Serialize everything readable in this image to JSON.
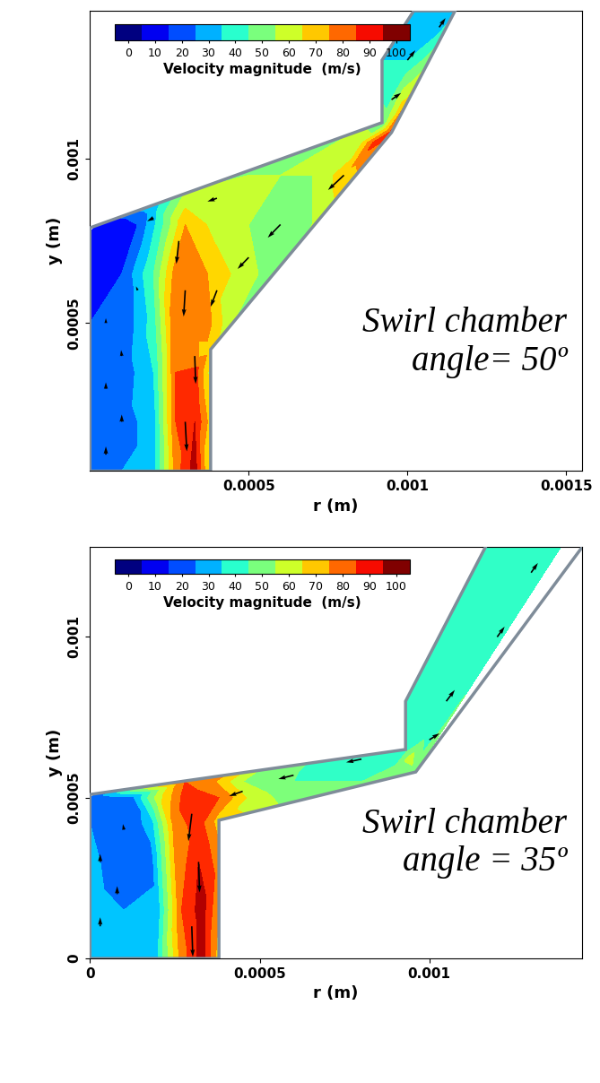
{
  "chart_data": [
    {
      "type": "contour",
      "annotation": "Swirl chamber\nangle= 50º",
      "xlabel": "r (m)",
      "ylabel": "y (m)",
      "xlim": [
        0,
        0.00155
      ],
      "ylim": [
        5e-05,
        0.00145
      ],
      "xticks": [
        0.0005,
        0.001,
        0.0015
      ],
      "yticks": [
        0.0005,
        0.001
      ],
      "colorbar": {
        "label": "Velocity magnitude  (m/s)",
        "range": [
          -5,
          105
        ],
        "ticks": [
          0,
          10,
          20,
          30,
          40,
          50,
          60,
          70,
          80,
          90,
          100
        ],
        "levels": [
          -5,
          5,
          15,
          25,
          35,
          45,
          55,
          65,
          75,
          85,
          95,
          105
        ]
      },
      "wall": [
        [
          0,
          5e-05
        ],
        [
          0.00038,
          5e-05
        ],
        [
          0.00038,
          0.00042
        ],
        [
          0.00095,
          0.00108
        ],
        [
          0.00115,
          0.00145
        ],
        [
          0.00102,
          0.00145
        ],
        [
          0.00092,
          0.0013
        ],
        [
          0.00092,
          0.00111
        ],
        [
          0,
          0.00079
        ]
      ],
      "field": [
        [
          0,
          5e-05,
          25
        ],
        [
          0.0001,
          5e-05,
          25
        ],
        [
          0.0002,
          5e-05,
          30
        ],
        [
          0.00027,
          5e-05,
          80
        ],
        [
          0.00033,
          5e-05,
          100
        ],
        [
          0.00038,
          5e-05,
          60
        ],
        [
          0,
          0.0002,
          25
        ],
        [
          0.0001,
          0.0002,
          20
        ],
        [
          0.0002,
          0.0002,
          30
        ],
        [
          0.00027,
          0.0002,
          85
        ],
        [
          0.00033,
          0.0002,
          95
        ],
        [
          0.00038,
          0.0002,
          70
        ],
        [
          0,
          0.00035,
          22
        ],
        [
          0.0001,
          0.00035,
          18
        ],
        [
          0.0002,
          0.00035,
          35
        ],
        [
          0.00027,
          0.00035,
          85
        ],
        [
          0.00033,
          0.00035,
          90
        ],
        [
          0.00038,
          0.00035,
          60
        ],
        [
          0.00038,
          0.00042,
          70
        ],
        [
          0,
          0.0005,
          15
        ],
        [
          0.0001,
          0.0005,
          15
        ],
        [
          0.0002,
          0.0005,
          40
        ],
        [
          0.00027,
          0.0005,
          85
        ],
        [
          0.00035,
          0.0005,
          85
        ],
        [
          0.00045,
          0.0005,
          55
        ],
        [
          0,
          0.00065,
          12
        ],
        [
          0.0001,
          0.00065,
          15
        ],
        [
          0.0002,
          0.00065,
          45
        ],
        [
          0.00027,
          0.00065,
          80
        ],
        [
          0.00037,
          0.00065,
          75
        ],
        [
          0.00048,
          0.00065,
          60
        ],
        [
          0.00058,
          0.00065,
          50
        ],
        [
          0,
          0.00078,
          5
        ],
        [
          5e-05,
          0.0008,
          5
        ],
        [
          0.00015,
          0.0008,
          15
        ],
        [
          0.00022,
          0.0008,
          40
        ],
        [
          0.0003,
          0.0008,
          75
        ],
        [
          0.0004,
          0.0008,
          60
        ],
        [
          0.0005,
          0.0008,
          55
        ],
        [
          0.0006,
          0.0008,
          50
        ],
        [
          0.0007,
          0.0008,
          55
        ],
        [
          0.0002,
          0.00085,
          30
        ],
        [
          0.0003,
          0.0009,
          55
        ],
        [
          0.0005,
          0.00095,
          55
        ],
        [
          0.0006,
          0.00095,
          55
        ],
        [
          0.0007,
          0.00095,
          55
        ],
        [
          0.0008,
          0.00095,
          70
        ],
        [
          0.00085,
          0.00105,
          60
        ],
        [
          0.0009,
          0.00105,
          90
        ],
        [
          0.00092,
          0.0011,
          50
        ],
        [
          0.00095,
          0.00108,
          90
        ],
        [
          0.00098,
          0.00115,
          70
        ],
        [
          0.00095,
          0.0012,
          40
        ],
        [
          0.00092,
          0.0013,
          35
        ],
        [
          0.001,
          0.0013,
          35
        ],
        [
          0.00105,
          0.0014,
          35
        ],
        [
          0.0011,
          0.0014,
          30
        ],
        [
          0.00102,
          0.00145,
          30
        ],
        [
          0.00115,
          0.00145,
          30
        ]
      ],
      "vectors": [
        [
          5e-05,
          0.0001,
          0,
          25
        ],
        [
          5e-05,
          0.0003,
          0,
          20
        ],
        [
          5e-05,
          0.0005,
          0,
          15
        ],
        [
          0.0001,
          0.0002,
          0,
          22
        ],
        [
          0.0001,
          0.0004,
          -2,
          18
        ],
        [
          0.00015,
          0.0006,
          -5,
          12
        ],
        [
          0.0003,
          0.0002,
          5,
          -90
        ],
        [
          0.00033,
          0.0004,
          3,
          -85
        ],
        [
          0.0003,
          0.0006,
          -5,
          -80
        ],
        [
          0.00028,
          0.00075,
          -8,
          -70
        ],
        [
          0.0008,
          0.00095,
          -50,
          -45
        ],
        [
          0.0006,
          0.0008,
          -40,
          -40
        ],
        [
          0.0005,
          0.0007,
          -35,
          -35
        ],
        [
          0.0004,
          0.0006,
          -20,
          -50
        ],
        [
          0.0004,
          0.00088,
          -30,
          -10
        ],
        [
          0.0002,
          0.00082,
          -20,
          -10
        ],
        [
          0.001,
          0.0013,
          25,
          30
        ],
        [
          0.0011,
          0.0014,
          20,
          28
        ],
        [
          0.00095,
          0.00118,
          30,
          20
        ]
      ]
    },
    {
      "type": "contour",
      "annotation": "Swirl chamber\nangle = 35º",
      "xlabel": "r (m)",
      "ylabel": "y (m)",
      "xlim": [
        0,
        0.00145
      ],
      "ylim": [
        0,
        0.00128
      ],
      "xticks": [
        0,
        0.0005,
        0.001
      ],
      "yticks": [
        0,
        0.0005,
        0.001
      ],
      "colorbar": {
        "label": "Velocity magnitude  (m/s)",
        "range": [
          -5,
          105
        ],
        "ticks": [
          0,
          10,
          20,
          30,
          40,
          50,
          60,
          70,
          80,
          90,
          100
        ],
        "levels": [
          -5,
          5,
          15,
          25,
          35,
          45,
          55,
          65,
          75,
          85,
          95,
          105
        ]
      },
      "wall": [
        [
          0,
          0
        ],
        [
          0.00038,
          0
        ],
        [
          0.00038,
          0.00043
        ],
        [
          0.00096,
          0.00058
        ],
        [
          0.0015,
          0.00135
        ],
        [
          0.0012,
          0.00135
        ],
        [
          0.00093,
          0.0008
        ],
        [
          0.00093,
          0.00065
        ],
        [
          0,
          0.00051
        ]
      ],
      "field": [
        [
          0,
          0,
          30
        ],
        [
          0.0001,
          0,
          30
        ],
        [
          0.0002,
          0,
          35
        ],
        [
          0.00027,
          0,
          80
        ],
        [
          0.00033,
          0,
          100
        ],
        [
          0.00038,
          0,
          70
        ],
        [
          0,
          0.00015,
          30
        ],
        [
          0.0001,
          0.00015,
          25
        ],
        [
          0.0002,
          0.00015,
          30
        ],
        [
          0.00027,
          0.00015,
          85
        ],
        [
          0.00033,
          0.00015,
          100
        ],
        [
          0.00038,
          0.00015,
          75
        ],
        [
          0,
          0.0003,
          28
        ],
        [
          0.0001,
          0.0003,
          18
        ],
        [
          0.00018,
          0.0003,
          20
        ],
        [
          0.00025,
          0.0003,
          75
        ],
        [
          0.00032,
          0.0003,
          95
        ],
        [
          0.00038,
          0.0003,
          80
        ],
        [
          0,
          0.00042,
          25
        ],
        [
          0.0001,
          0.00042,
          15
        ],
        [
          0.00018,
          0.00042,
          30
        ],
        [
          0.00025,
          0.00042,
          80
        ],
        [
          0.00032,
          0.00042,
          90
        ],
        [
          0.00038,
          0.00043,
          70
        ],
        [
          0,
          0.0005,
          15
        ],
        [
          5e-05,
          0.0005,
          20
        ],
        [
          0.00012,
          0.0005,
          20
        ],
        [
          0.0002,
          0.0005,
          60
        ],
        [
          0.00028,
          0.0005,
          90
        ],
        [
          0.00038,
          0.0005,
          85
        ],
        [
          0.00048,
          0.0005,
          60
        ],
        [
          0.0006,
          0.0005,
          50
        ],
        [
          0.00028,
          0.00055,
          85
        ],
        [
          0.00035,
          0.00055,
          80
        ],
        [
          0.00045,
          0.00055,
          55
        ],
        [
          0.0006,
          0.00055,
          45
        ],
        [
          0.0008,
          0.00055,
          45
        ],
        [
          0.0007,
          0.0006,
          40
        ],
        [
          0.0009,
          0.0006,
          45
        ],
        [
          0.00094,
          0.00062,
          60
        ],
        [
          0.00096,
          0.00058,
          50
        ],
        [
          0.00093,
          0.00065,
          40
        ],
        [
          0.001,
          0.0007,
          40
        ],
        [
          0.00095,
          0.00078,
          35
        ],
        [
          0.00105,
          0.00095,
          40
        ],
        [
          0.0011,
          0.0009,
          35
        ],
        [
          0.00115,
          0.0011,
          38
        ],
        [
          0.0012,
          0.001,
          35
        ],
        [
          0.0013,
          0.0012,
          35
        ],
        [
          0.0014,
          0.0013,
          35
        ],
        [
          0.0012,
          0.0013,
          35
        ]
      ],
      "vectors": [
        [
          3e-05,
          0.0001,
          0,
          28
        ],
        [
          3e-05,
          0.0003,
          0,
          25
        ],
        [
          8e-05,
          0.0002,
          0,
          25
        ],
        [
          0.0001,
          0.0004,
          -3,
          18
        ],
        [
          0.0003,
          0.0001,
          3,
          -95
        ],
        [
          0.00032,
          0.0003,
          3,
          -95
        ],
        [
          0.0003,
          0.00045,
          -10,
          -85
        ],
        [
          0.0008,
          0.00062,
          -45,
          -10
        ],
        [
          0.0006,
          0.00057,
          -45,
          -12
        ],
        [
          0.00045,
          0.00052,
          -40,
          -15
        ],
        [
          0.00105,
          0.0008,
          25,
          35
        ],
        [
          0.0012,
          0.001,
          22,
          32
        ],
        [
          0.0013,
          0.0012,
          20,
          30
        ],
        [
          0.001,
          0.00068,
          30,
          20
        ]
      ]
    }
  ]
}
